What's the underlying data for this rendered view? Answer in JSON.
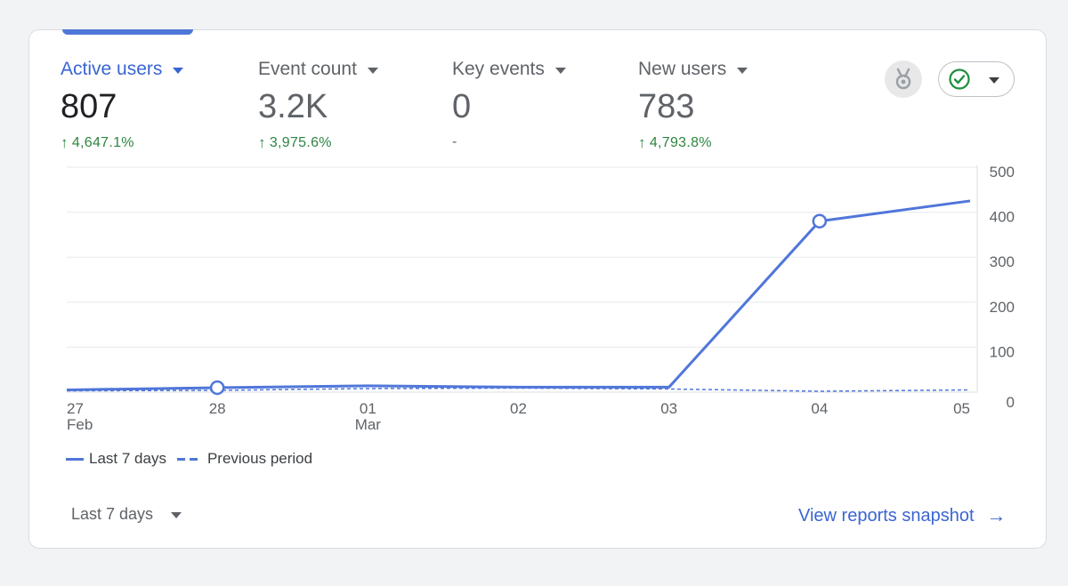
{
  "metrics": [
    {
      "label": "Active users",
      "value": "807",
      "change": "4,647.1%",
      "trend": "up"
    },
    {
      "label": "Event count",
      "value": "3.2K",
      "change": "3,975.6%",
      "trend": "up"
    },
    {
      "label": "Key events",
      "value": "0",
      "change": "-",
      "trend": "none"
    },
    {
      "label": "New users",
      "value": "783",
      "change": "4,793.8%",
      "trend": "up"
    }
  ],
  "icons": {
    "insights": "medal-icon",
    "status": "check-circle-icon",
    "trend_up": "arrow-up-icon",
    "view_reports": "arrow-right-icon"
  },
  "colors": {
    "accent": "#4f76d9",
    "positive": "#2e8540",
    "status_ok": "#1e8e3e"
  },
  "chart_data": {
    "type": "line",
    "categories": [
      "27 Feb",
      "28",
      "01 Mar",
      "02",
      "03",
      "04",
      "05"
    ],
    "x_tick_labels": [
      {
        "day": "27",
        "month": "Feb"
      },
      {
        "day": "28",
        "month": ""
      },
      {
        "day": "01",
        "month": "Mar"
      },
      {
        "day": "02",
        "month": ""
      },
      {
        "day": "03",
        "month": ""
      },
      {
        "day": "04",
        "month": ""
      },
      {
        "day": "05",
        "month": ""
      }
    ],
    "series": [
      {
        "name": "Last 7 days",
        "style": "solid",
        "values": [
          5,
          10,
          14,
          11,
          11,
          380,
          425
        ],
        "markers": [
          1,
          5
        ]
      },
      {
        "name": "Previous period",
        "style": "dashed",
        "values": [
          3,
          4,
          8,
          9,
          7,
          2,
          5
        ],
        "markers": []
      }
    ],
    "ylim": [
      0,
      500
    ],
    "y_ticks": [
      "0",
      "100",
      "200",
      "300",
      "400",
      "500"
    ],
    "y_axis_position": "right",
    "grid": true,
    "legend_position": "bottom-left"
  },
  "footer": {
    "date_range_label": "Last 7 days",
    "view_reports_label": "View reports snapshot"
  }
}
